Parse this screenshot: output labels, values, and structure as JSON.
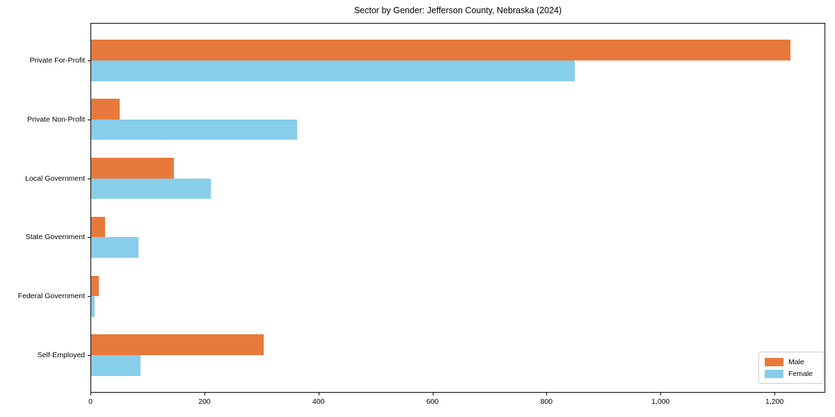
{
  "chart_data": {
    "type": "bar",
    "orientation": "horizontal",
    "title": "Sector by Gender: Jefferson County, Nebraska (2024)",
    "categories": [
      "Private For-Profit",
      "Private Non-Profit",
      "Local Government",
      "State Government",
      "Federal Government",
      "Self-Employed"
    ],
    "series": [
      {
        "name": "Male",
        "color": "#e8793c",
        "values": [
          1227,
          50,
          145,
          24,
          14,
          303
        ]
      },
      {
        "name": "Female",
        "color": "#87ceeb",
        "values": [
          848,
          361,
          210,
          83,
          6,
          87
        ]
      }
    ],
    "xlabel": "",
    "ylabel": "",
    "xlim": [
      0,
      1289
    ],
    "xticks": [
      0,
      200,
      400,
      600,
      800,
      1000,
      1200
    ],
    "xtick_labels": [
      "0",
      "200",
      "400",
      "600",
      "800",
      "1,000",
      "1,200"
    ],
    "grid": false,
    "legend_position": "lower right"
  }
}
